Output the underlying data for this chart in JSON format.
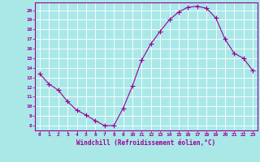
{
  "x": [
    0,
    1,
    2,
    3,
    4,
    5,
    6,
    7,
    8,
    9,
    10,
    11,
    12,
    13,
    14,
    15,
    16,
    17,
    18,
    19,
    20,
    21,
    22,
    23
  ],
  "y": [
    13.4,
    12.3,
    11.7,
    10.5,
    9.6,
    9.1,
    8.5,
    8.0,
    8.0,
    9.8,
    12.1,
    14.8,
    16.5,
    17.8,
    19.0,
    19.8,
    20.3,
    20.4,
    20.2,
    19.2,
    17.0,
    15.5,
    15.0,
    13.7
  ],
  "line_color": "#990099",
  "marker": "+",
  "marker_size": 4,
  "bg_color": "#aae8e8",
  "grid_color": "#ffffff",
  "xlabel": "Windchill (Refroidissement éolien,°C)",
  "ylabel_ticks": [
    8,
    9,
    10,
    11,
    12,
    13,
    14,
    15,
    16,
    17,
    18,
    19,
    20
  ],
  "ylim": [
    7.5,
    20.8
  ],
  "xlim": [
    -0.5,
    23.5
  ]
}
